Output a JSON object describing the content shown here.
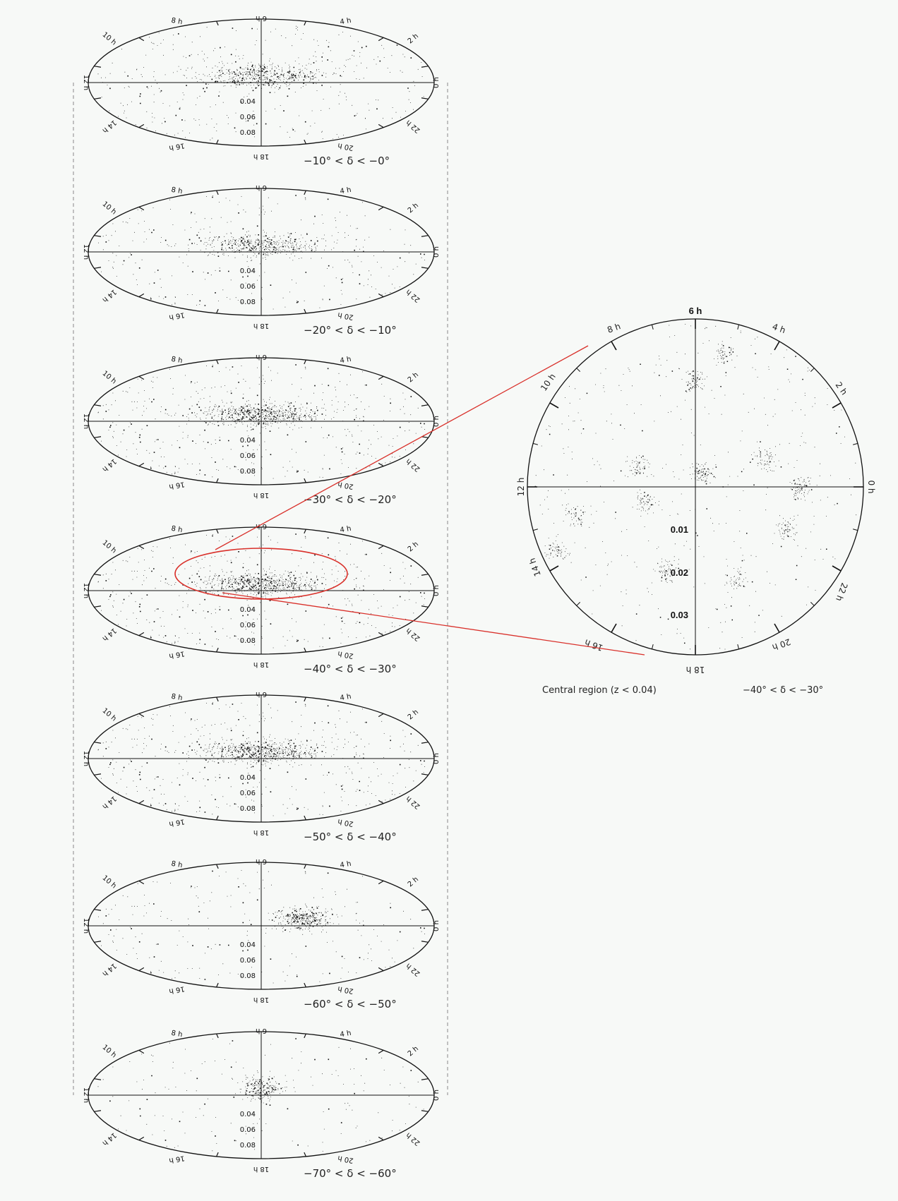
{
  "panels": [
    {
      "range": "−10° < δ < −0°",
      "z_labels": [
        "0.04",
        "0.06",
        "0.08"
      ],
      "cx": 370,
      "cy": 117,
      "density": 900,
      "lobes": "both"
    },
    {
      "range": "−20° < δ < −10°",
      "z_labels": [
        "0.04",
        "0.06",
        "0.08"
      ],
      "cx": 370,
      "cy": 357,
      "density": 800,
      "lobes": "both"
    },
    {
      "range": "−30° < δ < −20°",
      "z_labels": [
        "0.04",
        "0.06",
        "0.08"
      ],
      "cx": 370,
      "cy": 597,
      "density": 1300,
      "lobes": "both"
    },
    {
      "range": "−40° < δ < −30°",
      "z_labels": [
        "0.04",
        "0.06",
        "0.08"
      ],
      "cx": 370,
      "cy": 837,
      "density": 1500,
      "lobes": "both"
    },
    {
      "range": "−50° < δ < −40°",
      "z_labels": [
        "0.04",
        "0.06",
        "0.08"
      ],
      "cx": 370,
      "cy": 1075,
      "density": 1100,
      "lobes": "both"
    },
    {
      "range": "−60° < δ < −50°",
      "z_labels": [
        "0.04",
        "0.06",
        "0.08"
      ],
      "cx": 370,
      "cy": 1312,
      "density": 600,
      "lobes": "right"
    },
    {
      "range": "−70° < δ < −60°",
      "z_labels": [
        "0.04",
        "0.06",
        "0.08"
      ],
      "cx": 370,
      "cy": 1552,
      "density": 400,
      "lobes": "center"
    }
  ],
  "panel_hour_labels": [
    "6 h",
    "12 h",
    "0 h",
    "18 h",
    "14 h",
    "10 h",
    "2 h",
    "22 h",
    "16 h",
    "20 h",
    "8 h",
    "4 h"
  ],
  "zoom": {
    "caption_left": "Central region (z < 0.04)",
    "caption_right": "−40° < δ < −30°",
    "z_labels": [
      "0.01",
      "0.02",
      "0.03"
    ],
    "hour_labels": {
      "top": "6 h",
      "left": "12 h",
      "right": "0 h",
      "bottom": "18 h",
      "h8": "8 h",
      "h10": "10 h",
      "h4": "4 h",
      "h2": "2 h",
      "h14": "14 h",
      "h16": "16 h",
      "h20": "20 h",
      "h22": "22 h"
    }
  },
  "colors": {
    "points": "#111111",
    "axes": "#111111",
    "highlight": "#d9302a",
    "dash": "#888888",
    "background": "#f7f9f7"
  }
}
